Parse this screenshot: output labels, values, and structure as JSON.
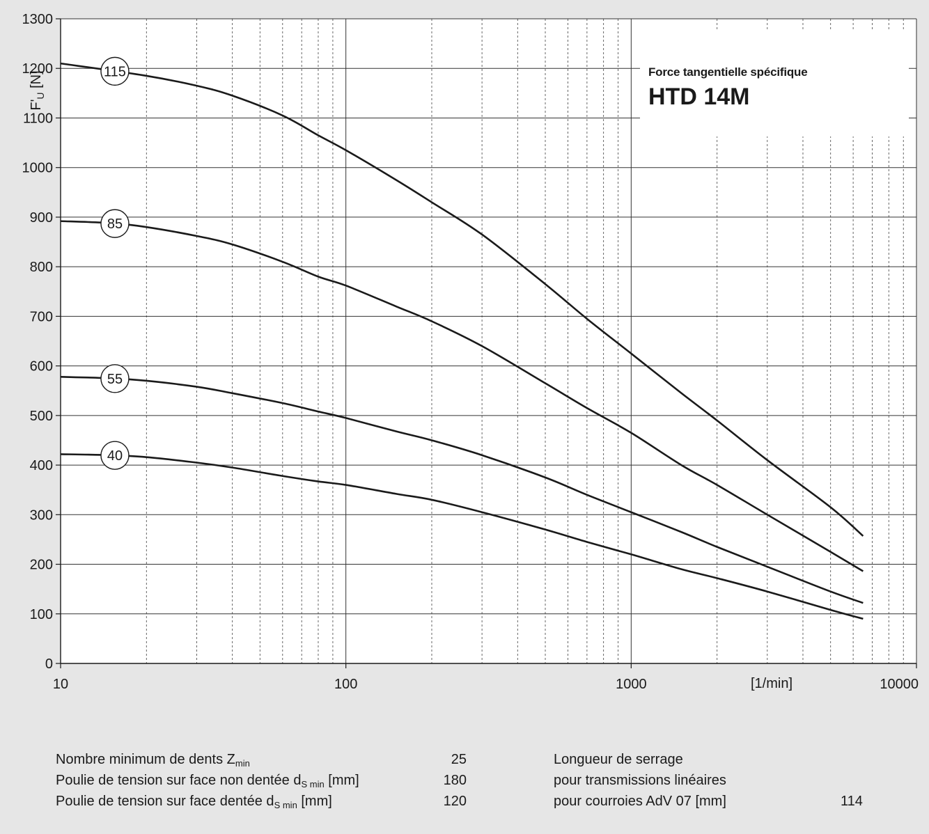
{
  "title": {
    "subtitle": "Force tangentielle spécifique",
    "main": "HTD 14M"
  },
  "chart_data": {
    "type": "line",
    "title": "HTD 14M",
    "subtitle": "Force tangentielle spécifique",
    "xlabel": "[1/min]",
    "ylabel": "F'U [N]",
    "x_scale": "log",
    "xlim": [
      10,
      10000
    ],
    "ylim": [
      0,
      1300
    ],
    "x_ticks": [
      "10",
      "100",
      "1000",
      "10000"
    ],
    "y_ticks": [
      "0",
      "100",
      "200",
      "300",
      "400",
      "500",
      "600",
      "700",
      "800",
      "900",
      "1000",
      "1100",
      "1200",
      "1300"
    ],
    "grid": true,
    "legend": "curve labels (circled) near left edge",
    "series": [
      {
        "name": "115",
        "x": [
          10,
          20,
          30,
          40,
          60,
          80,
          100,
          150,
          200,
          300,
          500,
          700,
          1000,
          1500,
          2000,
          3000,
          5000,
          6500
        ],
        "values": [
          1210,
          1185,
          1165,
          1145,
          1105,
          1065,
          1035,
          975,
          930,
          865,
          765,
          695,
          625,
          545,
          490,
          410,
          315,
          257
        ]
      },
      {
        "name": "85",
        "x": [
          10,
          15,
          20,
          30,
          40,
          60,
          80,
          100,
          150,
          200,
          300,
          500,
          700,
          1000,
          1500,
          2000,
          3000,
          5000,
          6500
        ],
        "values": [
          892,
          888,
          880,
          862,
          845,
          810,
          780,
          762,
          720,
          690,
          640,
          565,
          515,
          465,
          400,
          360,
          300,
          225,
          186
        ]
      },
      {
        "name": "55",
        "x": [
          10,
          15,
          20,
          30,
          40,
          60,
          80,
          100,
          150,
          200,
          300,
          500,
          700,
          1000,
          1500,
          2000,
          3000,
          5000,
          6500
        ],
        "values": [
          578,
          575,
          570,
          558,
          545,
          525,
          508,
          495,
          468,
          450,
          420,
          375,
          340,
          305,
          265,
          235,
          195,
          145,
          122
        ]
      },
      {
        "name": "40",
        "x": [
          10,
          15,
          20,
          30,
          40,
          60,
          80,
          100,
          150,
          200,
          300,
          500,
          700,
          1000,
          1500,
          2000,
          3000,
          5000,
          6500
        ],
        "values": [
          422,
          420,
          416,
          405,
          395,
          378,
          367,
          360,
          342,
          330,
          305,
          270,
          245,
          220,
          190,
          172,
          145,
          108,
          90
        ]
      }
    ]
  },
  "specs": {
    "min_teeth_label": "Nombre minimum de dents Z",
    "min_teeth_sub": "min",
    "min_teeth_value": "25",
    "tension_back_label": "Poulie de tension sur face non dentée d",
    "tension_back_sub": "S min",
    "tension_back_unit": " [mm]",
    "tension_back_value": "180",
    "tension_tooth_label": "Poulie de tension sur face dentée d",
    "tension_tooth_sub": "S min",
    "tension_tooth_unit": " [mm]",
    "tension_tooth_value": "120",
    "clamp_line1": "Longueur de serrage",
    "clamp_line2": "pour transmissions linéaires",
    "clamp_line3": "pour courroies AdV 07 [mm]",
    "clamp_value": "114"
  }
}
